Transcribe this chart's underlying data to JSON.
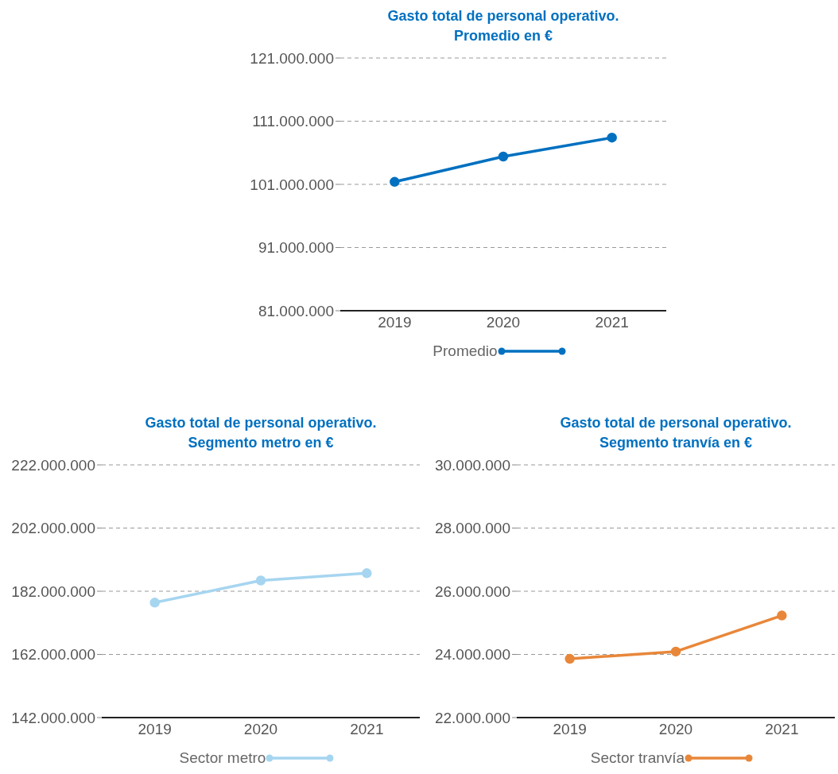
{
  "chart_data": [
    {
      "type": "line",
      "title": "Gasto total de personal operativo.\nPromedio en €",
      "categories": [
        "2019",
        "2020",
        "2021"
      ],
      "series": [
        {
          "name": "Promedio",
          "color": "#0070c0",
          "values": [
            101400000,
            105400000,
            108400000
          ]
        }
      ],
      "ylim": [
        81000000,
        121000000
      ],
      "yticks": [
        {
          "value": 81000000,
          "label": "81.000.000"
        },
        {
          "value": 91000000,
          "label": "91.000.000"
        },
        {
          "value": 101000000,
          "label": "101.000.000"
        },
        {
          "value": 111000000,
          "label": "111.000.000"
        },
        {
          "value": 121000000,
          "label": "121.000.000"
        }
      ],
      "grid": "y",
      "legend": "bottom",
      "marker": "circle",
      "line_style": "solid"
    },
    {
      "type": "line",
      "title": "Gasto total de personal operativo.\nSegmento metro en €",
      "categories": [
        "2019",
        "2020",
        "2021"
      ],
      "series": [
        {
          "name": "Sector metro",
          "color": "#a6d5f0",
          "values": [
            178400000,
            185400000,
            187700000
          ]
        }
      ],
      "ylim": [
        142000000,
        222000000
      ],
      "yticks": [
        {
          "value": 142000000,
          "label": "142.000.000"
        },
        {
          "value": 162000000,
          "label": "162.000.000"
        },
        {
          "value": 182000000,
          "label": "182.000.000"
        },
        {
          "value": 202000000,
          "label": "202.000.000"
        },
        {
          "value": 222000000,
          "label": "222.000.000"
        }
      ],
      "grid": "y",
      "legend": "bottom",
      "marker": "circle",
      "line_style": "solid"
    },
    {
      "type": "line",
      "title": "Gasto total de personal operativo.\nSegmento tranvía en €",
      "categories": [
        "2019",
        "2020",
        "2021"
      ],
      "series": [
        {
          "name": "Sector tranvía",
          "color": "#e8873a",
          "values": [
            23860000,
            24090000,
            25230000
          ]
        }
      ],
      "ylim": [
        22000000,
        30000000
      ],
      "yticks": [
        {
          "value": 22000000,
          "label": "22.000.000"
        },
        {
          "value": 24000000,
          "label": "24.000.000"
        },
        {
          "value": 26000000,
          "label": "26.000.000"
        },
        {
          "value": 28000000,
          "label": "28.000.000"
        },
        {
          "value": 30000000,
          "label": "30.000.000"
        }
      ],
      "grid": "y",
      "legend": "bottom",
      "marker": "circle",
      "line_style": "solid"
    }
  ]
}
